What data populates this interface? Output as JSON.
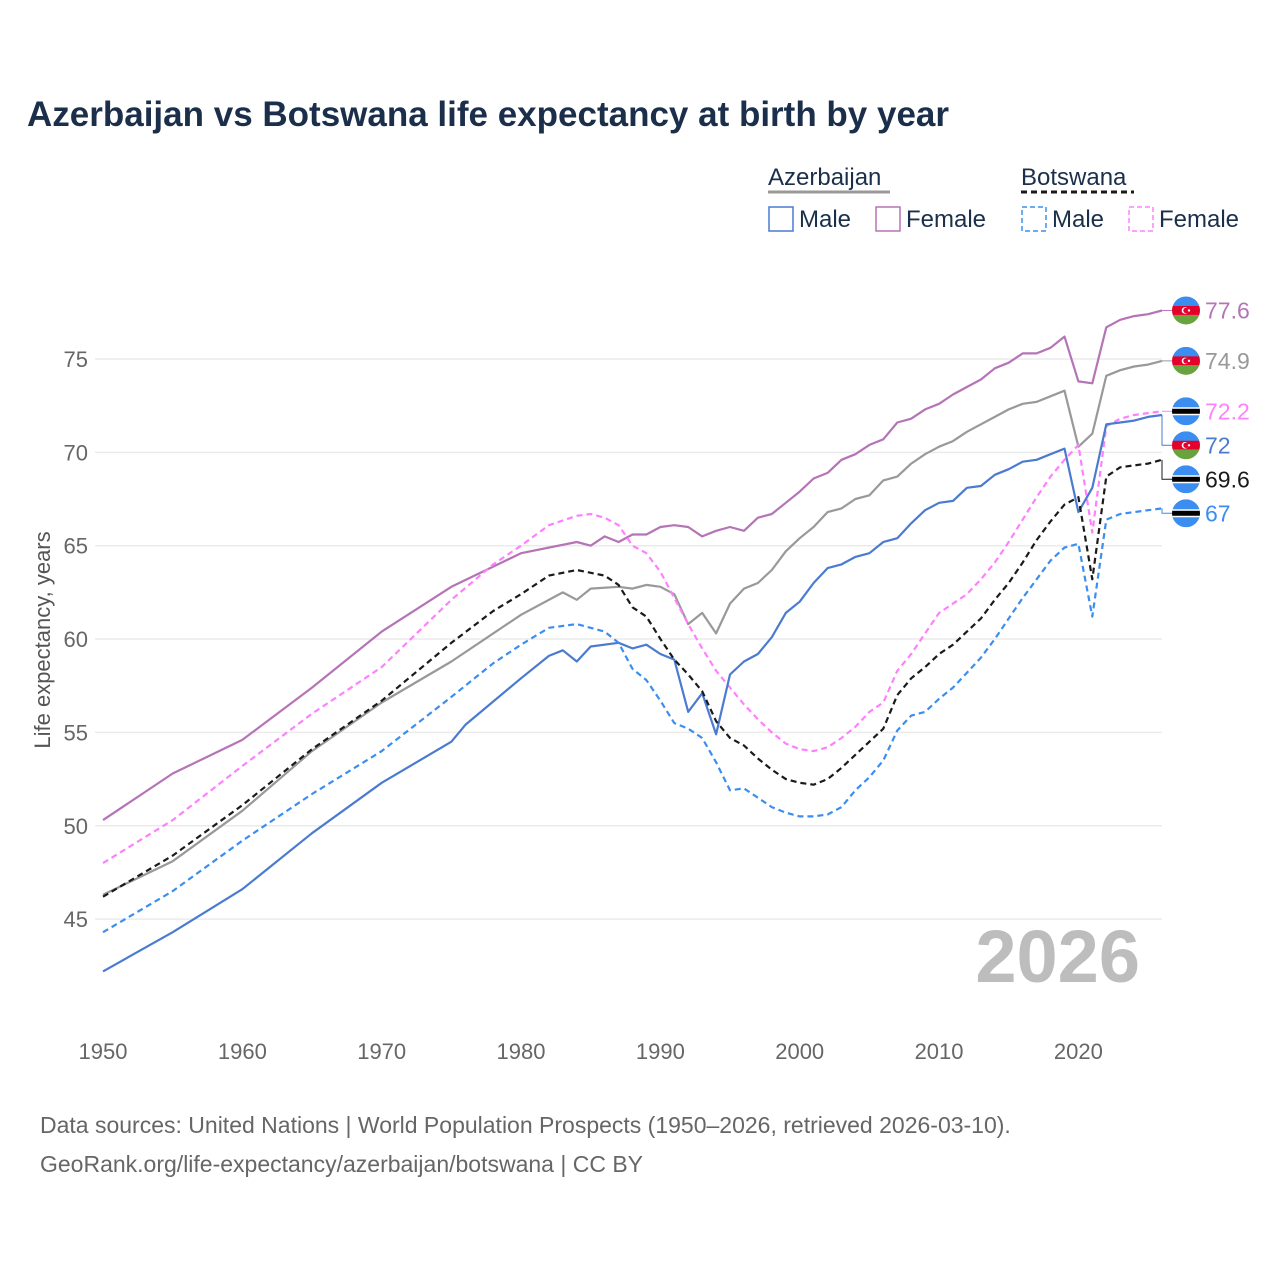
{
  "title": "Azerbaijan vs Botswana life expectancy at birth by year",
  "legend": {
    "groups": [
      {
        "country": "Azerbaijan",
        "male": "Male",
        "female": "Female"
      },
      {
        "country": "Botswana",
        "male": "Male",
        "female": "Female"
      }
    ]
  },
  "watermark_year": "2026",
  "footer": {
    "line1": "Data sources: United Nations | World Population Prospects (1950–2026, retrieved 2026-03-10).",
    "line2": "GeoRank.org/life-expectancy/azerbaijan/botswana | CC BY"
  },
  "chart_data": {
    "type": "line",
    "title": "Azerbaijan vs Botswana life expectancy at birth by year",
    "xlabel": "",
    "ylabel": "Life expectancy, years",
    "xlim": [
      1950,
      2026
    ],
    "ylim": [
      41,
      79
    ],
    "xticks": [
      "1950",
      "1960",
      "1970",
      "1980",
      "1990",
      "2000",
      "2010",
      "2020"
    ],
    "yticks": [
      "45",
      "50",
      "55",
      "60",
      "65",
      "70",
      "75"
    ],
    "grid": "horizontal",
    "legend_position": "top-right",
    "series": [
      {
        "name": "Azerbaijan Female",
        "country": "Azerbaijan",
        "sex": "Female",
        "color": "#b574b5",
        "dash": false,
        "flag": "azerbaijan",
        "end_label": "77.6",
        "x": [
          1950,
          1955,
          1960,
          1965,
          1970,
          1975,
          1980,
          1984,
          1985,
          1986,
          1987,
          1988,
          1989,
          1990,
          1991,
          1992,
          1993,
          1994,
          1995,
          1996,
          1997,
          1998,
          1999,
          2000,
          2001,
          2002,
          2003,
          2004,
          2005,
          2006,
          2007,
          2008,
          2009,
          2010,
          2011,
          2012,
          2013,
          2014,
          2015,
          2016,
          2017,
          2018,
          2019,
          2020,
          2021,
          2022,
          2023,
          2024,
          2025,
          2026
        ],
        "y": [
          50.3,
          52.8,
          54.6,
          57.4,
          60.4,
          62.8,
          64.6,
          65.2,
          65.0,
          65.5,
          65.2,
          65.6,
          65.6,
          66.0,
          66.1,
          66.0,
          65.5,
          65.8,
          66.0,
          65.8,
          66.5,
          66.7,
          67.3,
          67.9,
          68.6,
          68.9,
          69.6,
          69.9,
          70.4,
          70.7,
          71.6,
          71.8,
          72.3,
          72.6,
          73.1,
          73.5,
          73.9,
          74.5,
          74.8,
          75.3,
          75.3,
          75.6,
          76.2,
          73.8,
          73.7,
          76.7,
          77.1,
          77.3,
          77.4,
          77.6
        ]
      },
      {
        "name": "Azerbaijan",
        "country": "Azerbaijan",
        "sex": "Total",
        "color": "#999999",
        "dash": false,
        "flag": "azerbaijan",
        "end_label": "74.9",
        "x": [
          1950,
          1955,
          1960,
          1965,
          1970,
          1975,
          1980,
          1983,
          1984,
          1985,
          1987,
          1988,
          1989,
          1990,
          1991,
          1992,
          1993,
          1994,
          1995,
          1996,
          1997,
          1998,
          1999,
          2000,
          2001,
          2002,
          2003,
          2004,
          2005,
          2006,
          2007,
          2008,
          2009,
          2010,
          2011,
          2012,
          2013,
          2014,
          2015,
          2016,
          2017,
          2018,
          2019,
          2020,
          2021,
          2022,
          2023,
          2024,
          2025,
          2026
        ],
        "y": [
          46.3,
          48.1,
          50.8,
          54.0,
          56.6,
          58.8,
          61.3,
          62.5,
          62.1,
          62.7,
          62.8,
          62.7,
          62.9,
          62.8,
          62.4,
          60.8,
          61.4,
          60.3,
          61.9,
          62.7,
          63.0,
          63.7,
          64.7,
          65.4,
          66.0,
          66.8,
          67.0,
          67.5,
          67.7,
          68.5,
          68.7,
          69.4,
          69.9,
          70.3,
          70.6,
          71.1,
          71.5,
          71.9,
          72.3,
          72.6,
          72.7,
          73.0,
          73.3,
          70.3,
          71.0,
          74.1,
          74.4,
          74.6,
          74.7,
          74.9
        ]
      },
      {
        "name": "Botswana Female",
        "country": "Botswana",
        "sex": "Female",
        "color": "#ff80ff",
        "dash": true,
        "flag": "botswana",
        "end_label": "72.2",
        "x": [
          1950,
          1955,
          1960,
          1965,
          1970,
          1975,
          1978,
          1980,
          1982,
          1984,
          1985,
          1986,
          1987,
          1988,
          1989,
          1990,
          1991,
          1992,
          1993,
          1994,
          1995,
          1996,
          1997,
          1998,
          1999,
          2000,
          2001,
          2002,
          2003,
          2004,
          2005,
          2006,
          2007,
          2008,
          2009,
          2010,
          2011,
          2012,
          2013,
          2014,
          2015,
          2016,
          2017,
          2018,
          2019,
          2020,
          2021,
          2022,
          2023,
          2024,
          2025,
          2026
        ],
        "y": [
          48.0,
          50.3,
          53.2,
          56.0,
          58.5,
          62.1,
          64.0,
          65.0,
          66.1,
          66.6,
          66.7,
          66.5,
          66.1,
          65.0,
          64.6,
          63.6,
          62.2,
          60.8,
          59.5,
          58.3,
          57.4,
          56.5,
          55.7,
          55.0,
          54.4,
          54.1,
          54.0,
          54.2,
          54.7,
          55.3,
          56.1,
          56.6,
          58.3,
          59.2,
          60.3,
          61.4,
          61.9,
          62.4,
          63.2,
          64.1,
          65.2,
          66.4,
          67.6,
          68.7,
          69.6,
          70.4,
          65.7,
          71.4,
          71.8,
          72.0,
          72.1,
          72.2
        ]
      },
      {
        "name": "Azerbaijan Male",
        "country": "Azerbaijan",
        "sex": "Male",
        "color": "#4a7bd0",
        "dash": false,
        "flag": "azerbaijan",
        "end_label": "72",
        "x": [
          1950,
          1955,
          1960,
          1965,
          1970,
          1975,
          1976,
          1980,
          1982,
          1983,
          1984,
          1985,
          1987,
          1988,
          1989,
          1990,
          1991,
          1992,
          1993,
          1994,
          1995,
          1996,
          1997,
          1998,
          1999,
          2000,
          2001,
          2002,
          2003,
          2004,
          2005,
          2006,
          2007,
          2008,
          2009,
          2010,
          2011,
          2012,
          2013,
          2014,
          2015,
          2016,
          2017,
          2018,
          2019,
          2020,
          2021,
          2022,
          2023,
          2024,
          2025,
          2026
        ],
        "y": [
          42.2,
          44.3,
          46.6,
          49.6,
          52.3,
          54.5,
          55.4,
          57.9,
          59.1,
          59.4,
          58.8,
          59.6,
          59.8,
          59.5,
          59.7,
          59.2,
          58.9,
          56.1,
          57.1,
          54.9,
          58.1,
          58.8,
          59.2,
          60.1,
          61.4,
          62.0,
          63.0,
          63.8,
          64.0,
          64.4,
          64.6,
          65.2,
          65.4,
          66.2,
          66.9,
          67.3,
          67.4,
          68.1,
          68.2,
          68.8,
          69.1,
          69.5,
          69.6,
          69.9,
          70.2,
          66.8,
          68.1,
          71.5,
          71.6,
          71.7,
          71.9,
          72.0
        ]
      },
      {
        "name": "Botswana",
        "country": "Botswana",
        "sex": "Total",
        "color": "#1a1a1a",
        "dash": true,
        "flag": "botswana",
        "end_label": "69.6",
        "x": [
          1950,
          1955,
          1960,
          1965,
          1970,
          1975,
          1978,
          1980,
          1982,
          1984,
          1986,
          1987,
          1988,
          1989,
          1990,
          1991,
          1992,
          1993,
          1994,
          1995,
          1996,
          1997,
          1998,
          1999,
          2000,
          2001,
          2002,
          2003,
          2004,
          2005,
          2006,
          2007,
          2008,
          2009,
          2010,
          2011,
          2012,
          2013,
          2014,
          2015,
          2016,
          2017,
          2018,
          2019,
          2020,
          2021,
          2022,
          2023,
          2024,
          2025,
          2026
        ],
        "y": [
          46.2,
          48.4,
          51.1,
          54.1,
          56.7,
          59.8,
          61.5,
          62.4,
          63.4,
          63.7,
          63.4,
          62.9,
          61.7,
          61.2,
          60.0,
          58.9,
          58.1,
          57.2,
          55.6,
          54.7,
          54.3,
          53.6,
          53.0,
          52.5,
          52.3,
          52.2,
          52.5,
          53.1,
          53.8,
          54.5,
          55.2,
          57.0,
          57.9,
          58.5,
          59.2,
          59.7,
          60.4,
          61.1,
          62.1,
          63.0,
          64.1,
          65.3,
          66.3,
          67.2,
          67.6,
          63.2,
          68.7,
          69.2,
          69.3,
          69.4,
          69.6
        ]
      },
      {
        "name": "Botswana Male",
        "country": "Botswana",
        "sex": "Male",
        "color": "#3b8ef0",
        "dash": true,
        "flag": "botswana",
        "end_label": "67",
        "x": [
          1950,
          1955,
          1960,
          1965,
          1970,
          1975,
          1978,
          1980,
          1982,
          1984,
          1986,
          1987,
          1988,
          1989,
          1990,
          1991,
          1992,
          1993,
          1994,
          1995,
          1996,
          1997,
          1998,
          1999,
          2000,
          2001,
          2002,
          2003,
          2004,
          2005,
          2006,
          2007,
          2008,
          2009,
          2010,
          2011,
          2012,
          2013,
          2014,
          2015,
          2016,
          2017,
          2018,
          2019,
          2020,
          2021,
          2022,
          2023,
          2024,
          2025,
          2026
        ],
        "y": [
          44.3,
          46.5,
          49.2,
          51.7,
          54.0,
          56.9,
          58.7,
          59.7,
          60.6,
          60.8,
          60.4,
          59.8,
          58.4,
          57.8,
          56.7,
          55.5,
          55.2,
          54.7,
          53.4,
          51.9,
          52.0,
          51.5,
          51.0,
          50.7,
          50.5,
          50.5,
          50.6,
          51.0,
          51.9,
          52.6,
          53.5,
          55.1,
          55.9,
          56.1,
          56.8,
          57.4,
          58.2,
          59.0,
          60.0,
          61.1,
          62.2,
          63.2,
          64.2,
          64.9,
          65.1,
          61.2,
          66.4,
          66.7,
          66.8,
          66.9,
          67.0
        ]
      }
    ]
  }
}
